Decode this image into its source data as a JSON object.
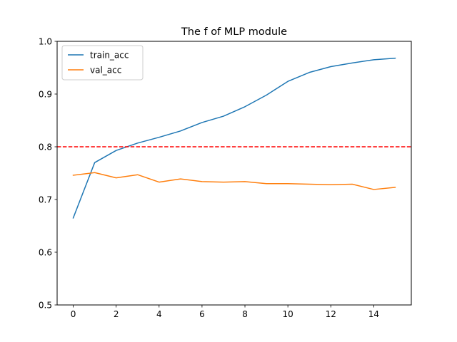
{
  "chart_data": {
    "type": "line",
    "title": "The f of MLP module",
    "xlabel": "",
    "ylabel": "",
    "xlim": [
      -0.75,
      15.75
    ],
    "ylim": [
      0.5,
      1.0
    ],
    "xticks": [
      0,
      2,
      4,
      6,
      8,
      10,
      12,
      14
    ],
    "yticks": [
      0.5,
      0.6,
      0.7,
      0.8,
      0.9,
      1.0
    ],
    "xtick_labels": [
      "0",
      "2",
      "4",
      "6",
      "8",
      "10",
      "12",
      "14"
    ],
    "ytick_labels": [
      "0.5",
      "0.6",
      "0.7",
      "0.8",
      "0.9",
      "1.0"
    ],
    "grid": false,
    "legend_position": "top-left",
    "x": [
      0,
      1,
      2,
      3,
      4,
      5,
      6,
      7,
      8,
      9,
      10,
      11,
      12,
      13,
      14,
      15
    ],
    "series": [
      {
        "name": "train_acc",
        "color": "#1f77b4",
        "values": [
          0.665,
          0.77,
          0.793,
          0.807,
          0.818,
          0.83,
          0.846,
          0.858,
          0.876,
          0.898,
          0.924,
          0.941,
          0.952,
          0.959,
          0.965,
          0.968
        ]
      },
      {
        "name": "val_acc",
        "color": "#ff7f0e",
        "values": [
          0.746,
          0.751,
          0.741,
          0.747,
          0.733,
          0.739,
          0.734,
          0.733,
          0.734,
          0.73,
          0.73,
          0.729,
          0.728,
          0.729,
          0.719,
          0.723
        ]
      }
    ],
    "reference_line": {
      "orientation": "horizontal",
      "y": 0.8,
      "color": "#ff0000",
      "style": "dashed"
    }
  }
}
